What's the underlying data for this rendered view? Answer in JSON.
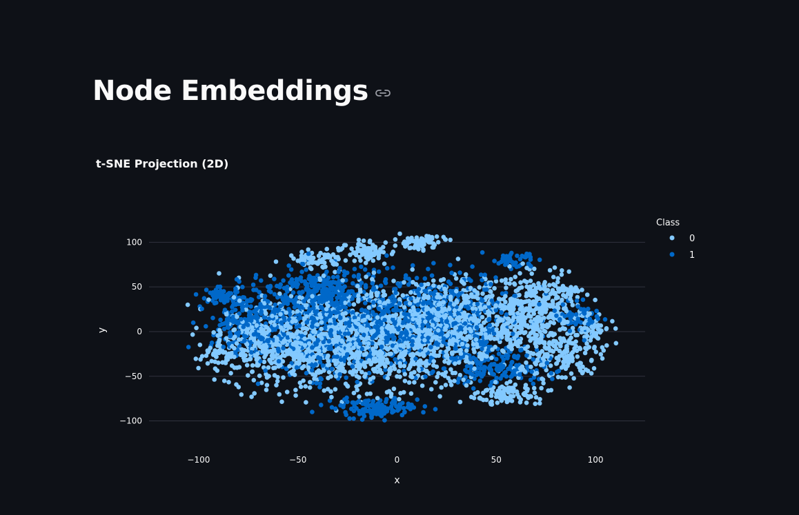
{
  "page": {
    "title": "Node Embeddings"
  },
  "icons": {
    "anchor": "link-icon"
  },
  "chart_data": {
    "type": "scatter",
    "title": "t-SNE Projection (2D)",
    "xlabel": "x",
    "ylabel": "y",
    "xlim": [
      -125,
      125
    ],
    "ylim": [
      -115,
      118
    ],
    "xticks": [
      -100,
      -50,
      0,
      50,
      100
    ],
    "yticks": [
      -100,
      -50,
      0,
      50,
      100
    ],
    "grid": "horizontal",
    "legend": {
      "title": "Class",
      "placement": "top-right",
      "entries": [
        "0",
        "1"
      ]
    },
    "colors": {
      "0": "#83c9ff",
      "1": "#0068c9"
    },
    "series": [
      {
        "name": "0",
        "color": "#83c9ff",
        "clusters": [
          {
            "cx": -20,
            "cy": -10,
            "sx": 38,
            "sy": 38,
            "n": 900
          },
          {
            "cx": 30,
            "cy": 10,
            "sx": 32,
            "sy": 35,
            "n": 700
          },
          {
            "cx": -60,
            "cy": -15,
            "sx": 20,
            "sy": 30,
            "n": 350
          },
          {
            "cx": 70,
            "cy": 25,
            "sx": 14,
            "sy": 25,
            "n": 260
          },
          {
            "cx": 80,
            "cy": -25,
            "sx": 15,
            "sy": 20,
            "n": 180
          },
          {
            "cx": 55,
            "cy": -70,
            "sx": 10,
            "sy": 8,
            "n": 90
          },
          {
            "cx": -15,
            "cy": 90,
            "sx": 8,
            "sy": 6,
            "n": 80
          },
          {
            "cx": 10,
            "cy": 100,
            "sx": 9,
            "sy": 5,
            "n": 70
          },
          {
            "cx": -40,
            "cy": 80,
            "sx": 10,
            "sy": 6,
            "n": 70
          },
          {
            "cx": -90,
            "cy": -25,
            "sx": 6,
            "sy": 8,
            "n": 40
          },
          {
            "cx": 100,
            "cy": 0,
            "sx": 6,
            "sy": 15,
            "n": 50
          },
          {
            "cx": 85,
            "cy": 45,
            "sx": 6,
            "sy": 5,
            "n": 40
          }
        ]
      },
      {
        "name": "1",
        "color": "#0068c9",
        "clusters": [
          {
            "cx": -30,
            "cy": 5,
            "sx": 33,
            "sy": 35,
            "n": 650
          },
          {
            "cx": 20,
            "cy": 15,
            "sx": 30,
            "sy": 33,
            "n": 500
          },
          {
            "cx": -75,
            "cy": 15,
            "sx": 13,
            "sy": 25,
            "n": 220
          },
          {
            "cx": -10,
            "cy": -85,
            "sx": 14,
            "sy": 7,
            "n": 120
          },
          {
            "cx": -40,
            "cy": 50,
            "sx": 15,
            "sy": 15,
            "n": 180
          },
          {
            "cx": 50,
            "cy": -40,
            "sx": 18,
            "sy": 15,
            "n": 160
          },
          {
            "cx": -90,
            "cy": 40,
            "sx": 5,
            "sy": 6,
            "n": 40
          },
          {
            "cx": 60,
            "cy": 80,
            "sx": 8,
            "sy": 6,
            "n": 40
          },
          {
            "cx": 90,
            "cy": 15,
            "sx": 8,
            "sy": 10,
            "n": 60
          }
        ]
      }
    ]
  }
}
